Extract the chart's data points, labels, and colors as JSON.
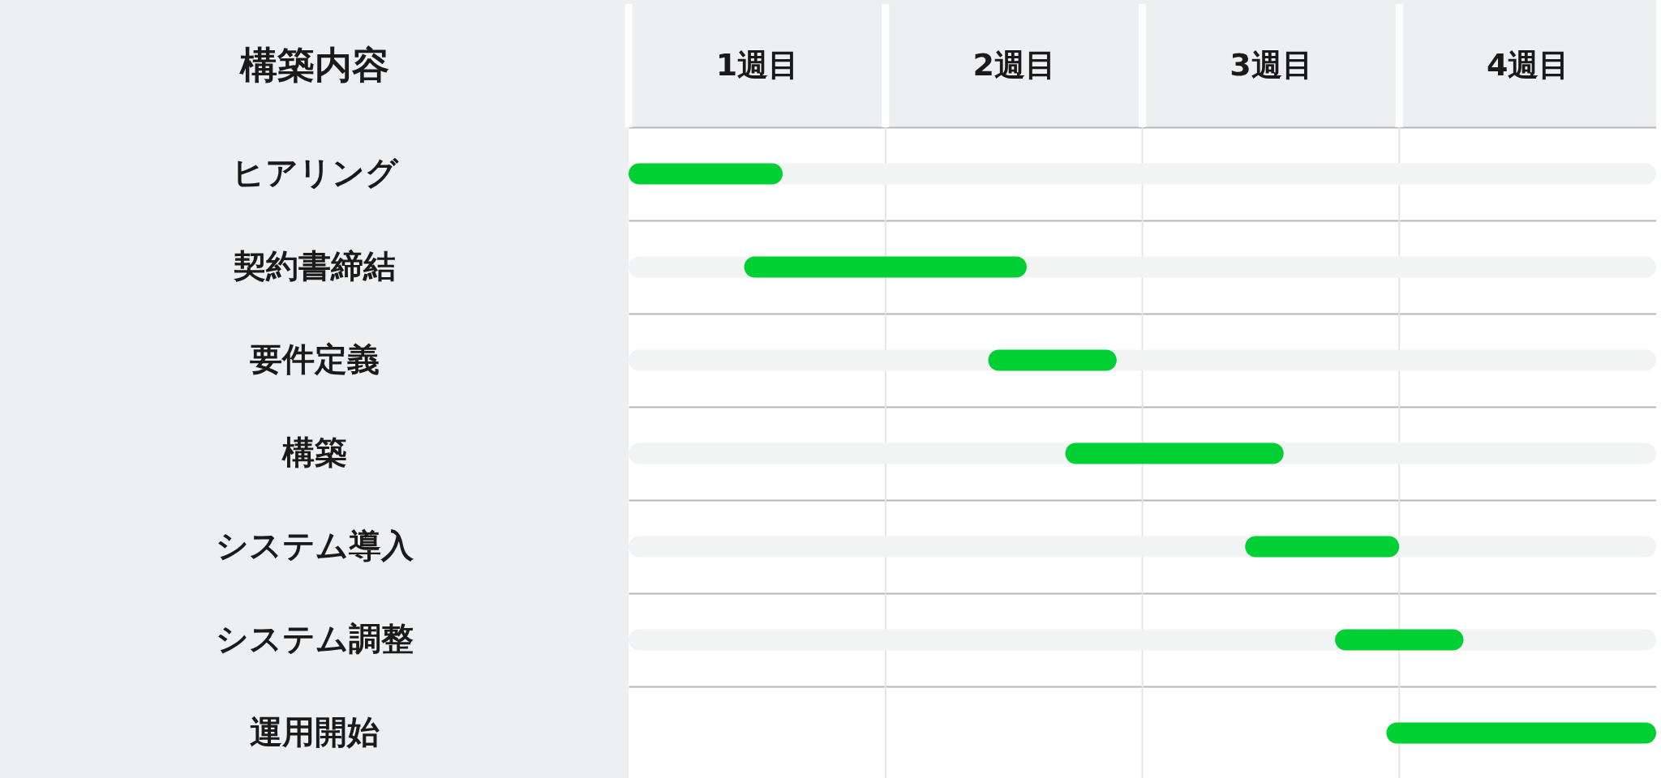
{
  "chart_data": {
    "type": "bar",
    "orientation": "horizontal",
    "ylabel": "構築内容",
    "categories": [
      "ヒアリング",
      "契約書締結",
      "要件定義",
      "構築",
      "システム導入",
      "システム調整",
      "運用開始"
    ],
    "series": [
      {
        "color": "#f2f3f3",
        "base": [
          0,
          0,
          0,
          0,
          0,
          0,
          null
        ],
        "values": [
          4,
          4,
          4,
          4,
          4,
          4,
          null
        ]
      },
      {
        "color": "#00d034",
        "base": [
          0,
          0.45,
          1.4,
          1.7,
          2.4,
          2.75,
          2.95
        ],
        "values": [
          0.6,
          1.1,
          0.5,
          0.85,
          0.6,
          0.5,
          1.05
        ]
      }
    ],
    "xlim": [
      0,
      4
    ],
    "xticks": [
      {
        "value": 0.5,
        "label": "1週目"
      },
      {
        "value": 1.5,
        "label": "2週目"
      },
      {
        "value": 2.5,
        "label": "3週目"
      },
      {
        "value": 3.5,
        "label": "4週目"
      }
    ],
    "grid": "y",
    "ref_lines": [
      {
        "axis": "x",
        "value": 1,
        "color": "#e4e5e6"
      },
      {
        "axis": "x",
        "value": 2,
        "color": "#e4e5e6"
      },
      {
        "axis": "x",
        "value": 3,
        "color": "#e4e5e6"
      }
    ]
  }
}
